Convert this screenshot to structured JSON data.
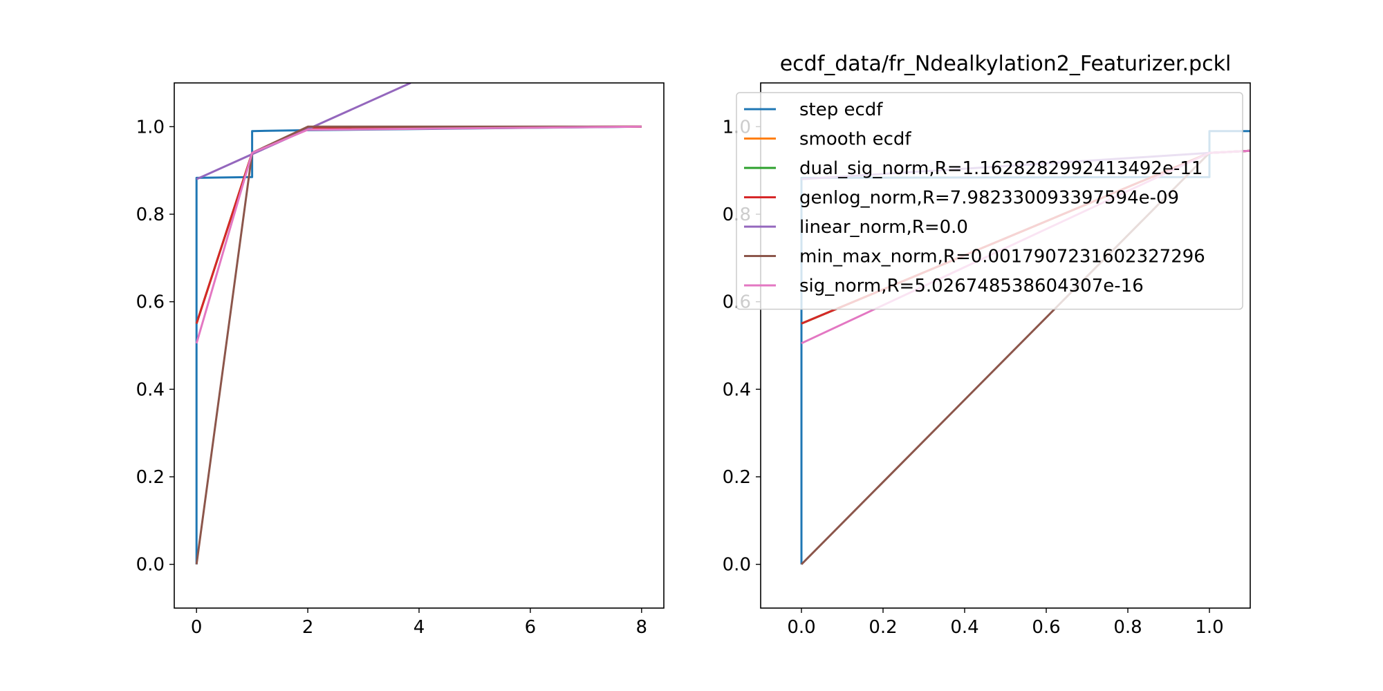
{
  "chart_data": [
    {
      "type": "line",
      "title": "",
      "xlabel": "",
      "ylabel": "",
      "xlim": [
        -0.4,
        8.4
      ],
      "ylim": [
        -0.1,
        1.1
      ],
      "xticks": [
        "0",
        "2",
        "4",
        "6",
        "8"
      ],
      "yticks": [
        "0.0",
        "0.2",
        "0.4",
        "0.6",
        "0.8",
        "1.0"
      ],
      "grid": false,
      "series": [
        {
          "color": "#1f77b4",
          "step": true,
          "x": [
            0,
            0,
            1,
            1,
            2,
            8
          ],
          "y": [
            0,
            0.883,
            0.885,
            0.99,
            0.992,
            1.0
          ]
        },
        {
          "color": "#ff7f0e",
          "x": [
            0,
            1,
            2,
            8
          ],
          "y": [
            0.55,
            0.94,
            0.998,
            1.0
          ]
        },
        {
          "color": "#2ca02c",
          "x": [
            0,
            1,
            2,
            8
          ],
          "y": [
            0.55,
            0.94,
            0.998,
            1.0
          ]
        },
        {
          "color": "#d62728",
          "x": [
            0,
            1,
            2,
            8
          ],
          "y": [
            0.55,
            0.94,
            0.998,
            1.0
          ]
        },
        {
          "color": "#9467bd",
          "x": [
            0,
            3.85
          ],
          "y": [
            0.88,
            1.1
          ]
        },
        {
          "color": "#8c564b",
          "x": [
            0,
            1,
            2,
            8
          ],
          "y": [
            0,
            0.94,
            1.0,
            1.0
          ]
        },
        {
          "color": "#e377c2",
          "x": [
            0,
            1,
            2,
            8
          ],
          "y": [
            0.505,
            0.94,
            0.993,
            1.0
          ]
        }
      ]
    },
    {
      "type": "line",
      "title": "ecdf_data/fr_Ndealkylation2_Featurizer.pckl",
      "xlabel": "",
      "ylabel": "",
      "xlim": [
        -0.1,
        1.1
      ],
      "ylim": [
        -0.1,
        1.1
      ],
      "xticks": [
        "0.0",
        "0.2",
        "0.4",
        "0.6",
        "0.8",
        "1.0"
      ],
      "yticks": [
        "0.0",
        "0.2",
        "0.4",
        "0.6",
        "0.8",
        "1.0"
      ],
      "grid": false,
      "legend_position": "upper-right",
      "series": [
        {
          "name": "step ecdf",
          "color": "#1f77b4",
          "step": true,
          "x": [
            0,
            0,
            1,
            1,
            1.1
          ],
          "y": [
            0,
            0.883,
            0.885,
            0.99,
            0.99
          ]
        },
        {
          "name": "smooth ecdf",
          "color": "#ff7f0e",
          "x": [
            0,
            1,
            1.1
          ],
          "y": [
            0.55,
            0.94,
            0.945
          ]
        },
        {
          "name": "dual_sig_norm,R=1.1628282992413492e-11",
          "color": "#2ca02c",
          "x": [
            0,
            1,
            1.1
          ],
          "y": [
            0.55,
            0.94,
            0.945
          ]
        },
        {
          "name": "genlog_norm,R=7.982330093397594e-09",
          "color": "#d62728",
          "x": [
            0,
            1,
            1.1
          ],
          "y": [
            0.55,
            0.94,
            0.945
          ]
        },
        {
          "name": "linear_norm,R=0.0",
          "color": "#9467bd",
          "x": [
            0,
            1,
            1.1
          ],
          "y": [
            0.88,
            0.94,
            0.945
          ]
        },
        {
          "name": "min_max_norm,R=0.0017907231602327296",
          "color": "#8c564b",
          "x": [
            0,
            1,
            1.1
          ],
          "y": [
            0,
            0.94,
            0.945
          ]
        },
        {
          "name": "sig_norm,R=5.026748538604307e-16",
          "color": "#e377c2",
          "x": [
            0,
            1,
            1.1
          ],
          "y": [
            0.505,
            0.94,
            0.945
          ]
        }
      ]
    }
  ]
}
